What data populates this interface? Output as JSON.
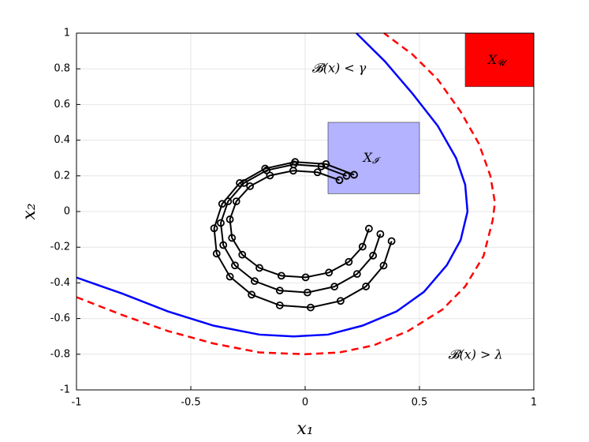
{
  "chart_data": {
    "type": "line",
    "xlabel": "x₁",
    "ylabel": "x₂",
    "xlim": [
      -1,
      1
    ],
    "ylim": [
      -1,
      1
    ],
    "xticks": [
      -1,
      -0.5,
      0,
      0.5,
      1
    ],
    "yticks": [
      -1,
      -0.8,
      -0.6,
      -0.4,
      -0.2,
      0,
      0.2,
      0.4,
      0.6,
      0.8,
      1
    ],
    "grid": true,
    "regions": [
      {
        "label": "X",
        "sub": "𝓘",
        "x": [
          0.1,
          0.5
        ],
        "y": [
          0.1,
          0.5
        ],
        "color": "#b3b3ff"
      },
      {
        "label": "X",
        "sub": "𝓤",
        "x": [
          0.7,
          1
        ],
        "y": [
          0.7,
          1
        ],
        "color": "#ff0000"
      }
    ],
    "annotations": [
      "𝓑(x) < γ",
      "𝓑(x) > λ"
    ],
    "series": [
      {
        "color": "#0000ff",
        "style": "solid",
        "x": [
          -1,
          -0.8,
          -0.6,
          -0.4,
          -0.2,
          -0.05,
          0.1,
          0.25,
          0.4,
          0.52,
          0.62,
          0.68,
          0.71,
          0.7,
          0.66,
          0.58,
          0.47,
          0.35,
          0.224
        ],
        "values": [
          -0.37,
          -0.46,
          -0.56,
          -0.64,
          -0.69,
          -0.7,
          -0.69,
          -0.64,
          -0.56,
          -0.45,
          -0.3,
          -0.16,
          0,
          0.15,
          0.3,
          0.48,
          0.66,
          0.84,
          1
        ]
      },
      {
        "color": "#ff0000",
        "style": "dashed",
        "x": [
          -1,
          -0.8,
          -0.6,
          -0.4,
          -0.2,
          0,
          0.15,
          0.3,
          0.45,
          0.6,
          0.7,
          0.78,
          0.82,
          0.83,
          0.81,
          0.76,
          0.68,
          0.58,
          0.47,
          0.345
        ],
        "values": [
          -0.48,
          -0.58,
          -0.67,
          -0.74,
          -0.79,
          -0.8,
          -0.79,
          -0.75,
          -0.67,
          -0.55,
          -0.42,
          -0.25,
          -0.05,
          0.05,
          0.2,
          0.38,
          0.56,
          0.74,
          0.88,
          1
        ]
      },
      {
        "color": "#000000",
        "style": "solid",
        "marker": "o",
        "x": [
          0.15,
          0.054,
          -0.052,
          -0.154,
          -0.241,
          -0.301,
          -0.329,
          -0.32,
          -0.275,
          -0.2,
          -0.104,
          0.002,
          0.104,
          0.191,
          0.251,
          0.279
        ],
        "values": [
          0.176,
          0.22,
          0.229,
          0.202,
          0.142,
          0.057,
          -0.044,
          -0.148,
          -0.242,
          -0.316,
          -0.36,
          -0.369,
          -0.342,
          -0.282,
          -0.197,
          -0.096
        ]
      },
      {
        "color": "#000000",
        "style": "solid",
        "marker": "o",
        "x": [
          0.181,
          0.071,
          -0.05,
          -0.168,
          -0.267,
          -0.337,
          -0.369,
          -0.358,
          -0.307,
          -0.221,
          -0.111,
          0.01,
          0.128,
          0.227,
          0.297,
          0.329
        ],
        "values": [
          0.2,
          0.253,
          0.264,
          0.231,
          0.16,
          0.057,
          -0.064,
          -0.188,
          -0.302,
          -0.39,
          -0.443,
          -0.454,
          -0.421,
          -0.35,
          -0.247,
          -0.126
        ]
      },
      {
        "color": "#000000",
        "style": "solid",
        "marker": "o",
        "x": [
          0.214,
          0.091,
          -0.044,
          -0.175,
          -0.286,
          -0.363,
          -0.398,
          -0.387,
          -0.329,
          -0.234,
          -0.111,
          0.024,
          0.155,
          0.266,
          0.343,
          0.378
        ],
        "values": [
          0.206,
          0.266,
          0.278,
          0.241,
          0.16,
          0.043,
          -0.094,
          -0.236,
          -0.365,
          -0.466,
          -0.526,
          -0.538,
          -0.501,
          -0.42,
          -0.303,
          -0.166
        ]
      }
    ]
  }
}
